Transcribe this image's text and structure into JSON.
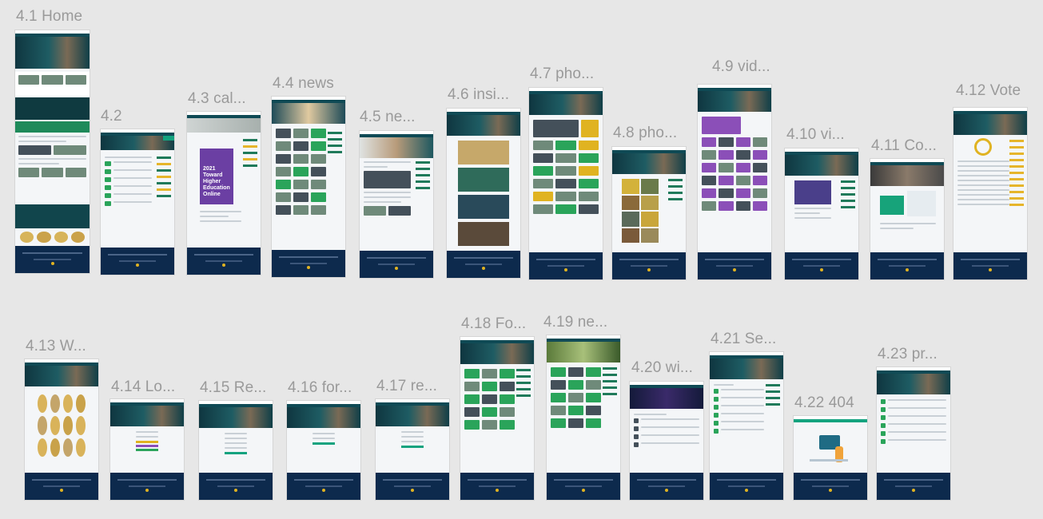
{
  "canvas": {
    "background": "#e7e7e7",
    "label_color": "#9a9a9a"
  },
  "frames": [
    {
      "id": "f1",
      "label": "4.1 Home"
    },
    {
      "id": "f2",
      "label": "4.2"
    },
    {
      "id": "f3",
      "label": "4.3 cal..."
    },
    {
      "id": "f4",
      "label": "4.4 news"
    },
    {
      "id": "f5",
      "label": "4.5 ne..."
    },
    {
      "id": "f6",
      "label": "4.6 insi..."
    },
    {
      "id": "f7",
      "label": "4.7 pho..."
    },
    {
      "id": "f8",
      "label": "4.8 pho..."
    },
    {
      "id": "f9",
      "label": "4.9 vid..."
    },
    {
      "id": "f10",
      "label": "4.10 vi..."
    },
    {
      "id": "f11",
      "label": "4.11 Co..."
    },
    {
      "id": "f12",
      "label": "4.12 Vote"
    },
    {
      "id": "f13",
      "label": "4.13 W..."
    },
    {
      "id": "f14",
      "label": "4.14 Lo..."
    },
    {
      "id": "f15",
      "label": "4.15 Re..."
    },
    {
      "id": "f16",
      "label": "4.16 for..."
    },
    {
      "id": "f17",
      "label": "4.17 re..."
    },
    {
      "id": "f18",
      "label": "4.18 Fo..."
    },
    {
      "id": "f19",
      "label": "4.19 ne..."
    },
    {
      "id": "f20",
      "label": "4.20 wi..."
    },
    {
      "id": "f21",
      "label": "4.21 Se..."
    },
    {
      "id": "f22",
      "label": "4.22 404"
    },
    {
      "id": "f23",
      "label": "4.23 pr..."
    }
  ],
  "poster": {
    "text": "2021 Toward Higher Education Online"
  },
  "colors": {
    "footer": "#0d2a4d",
    "nav": "#0f4a55",
    "accent_green": "#14a37f",
    "accent_yellow": "#e0b321",
    "poster_purple": "#6b3fa3"
  }
}
